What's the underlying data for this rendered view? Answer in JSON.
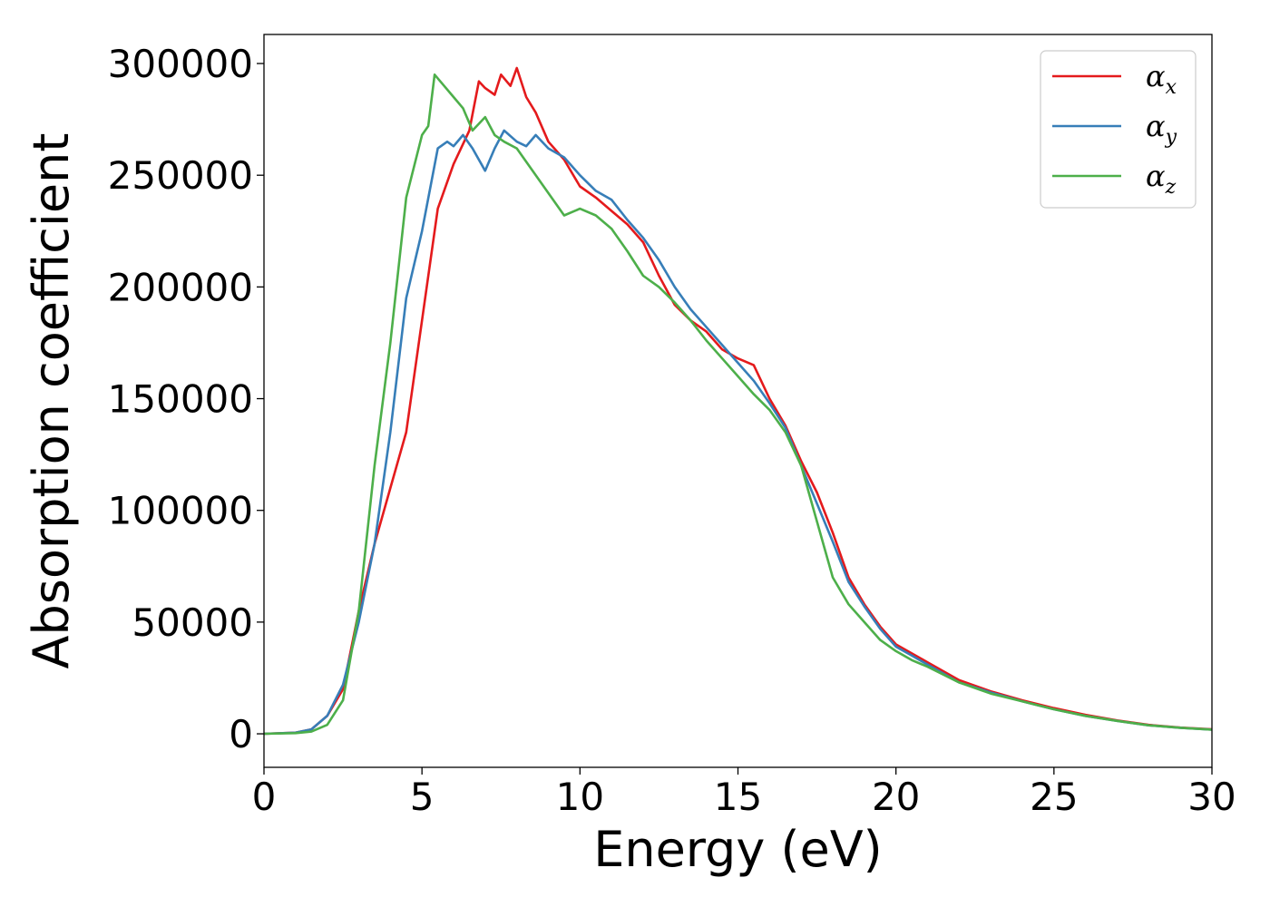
{
  "chart_data": {
    "type": "line",
    "title": "",
    "xlabel": "Energy (eV)",
    "ylabel": "Absorption coefficient",
    "xlim": [
      0,
      30
    ],
    "ylim": [
      -15000,
      313000
    ],
    "xticks": [
      0,
      5,
      10,
      15,
      20,
      25,
      30
    ],
    "xtick_labels": [
      "0",
      "5",
      "10",
      "15",
      "20",
      "25",
      "30"
    ],
    "yticks": [
      0,
      50000,
      100000,
      150000,
      200000,
      250000,
      300000
    ],
    "ytick_labels": [
      "0",
      "50000",
      "100000",
      "150000",
      "200000",
      "250000",
      "300000"
    ],
    "grid": false,
    "legend_position": "top-right",
    "series": [
      {
        "name": "α_x",
        "label_main": "α",
        "label_sub": "x",
        "color": "#e41a1c",
        "x": [
          0,
          1,
          1.5,
          2,
          2.5,
          3,
          3.5,
          4,
          4.5,
          5,
          5.5,
          6,
          6.5,
          6.8,
          7,
          7.3,
          7.5,
          7.8,
          8,
          8.3,
          8.6,
          9,
          9.5,
          10,
          10.5,
          11,
          11.5,
          12,
          12.5,
          13,
          13.5,
          14,
          14.5,
          15,
          15.5,
          16,
          16.5,
          17,
          17.5,
          18,
          18.5,
          19,
          19.5,
          20,
          20.5,
          21,
          22,
          23,
          24,
          25,
          26,
          27,
          28,
          29,
          30
        ],
        "y": [
          0,
          500,
          2000,
          8000,
          20000,
          55000,
          85000,
          110000,
          135000,
          185000,
          235000,
          255000,
          270000,
          292000,
          289000,
          286000,
          295000,
          290000,
          298000,
          285000,
          278000,
          265000,
          257000,
          245000,
          240000,
          234000,
          228000,
          220000,
          205000,
          192000,
          185000,
          180000,
          172000,
          168000,
          165000,
          150000,
          138000,
          122000,
          108000,
          90000,
          70000,
          58000,
          48000,
          40000,
          36000,
          32000,
          24000,
          19000,
          15000,
          11500,
          8500,
          6000,
          4000,
          2800,
          2000
        ]
      },
      {
        "name": "α_y",
        "label_main": "α",
        "label_sub": "y",
        "color": "#377eb8",
        "x": [
          0,
          1,
          1.5,
          2,
          2.5,
          3,
          3.5,
          4,
          4.5,
          5,
          5.5,
          5.8,
          6,
          6.3,
          6.6,
          7,
          7.3,
          7.6,
          8,
          8.3,
          8.6,
          9,
          9.5,
          10,
          10.5,
          11,
          11.5,
          12,
          12.5,
          13,
          13.5,
          14,
          14.5,
          15,
          15.5,
          16,
          16.5,
          17,
          17.5,
          18,
          18.5,
          19,
          19.5,
          20,
          20.5,
          21,
          22,
          23,
          24,
          25,
          26,
          27,
          28,
          29,
          30
        ],
        "y": [
          0,
          500,
          2000,
          8000,
          22000,
          50000,
          85000,
          135000,
          195000,
          225000,
          262000,
          265000,
          263000,
          268000,
          262000,
          252000,
          262000,
          270000,
          265000,
          263000,
          268000,
          262000,
          258000,
          250000,
          243000,
          239000,
          230000,
          222000,
          212000,
          200000,
          190000,
          182000,
          174000,
          166000,
          158000,
          148000,
          137000,
          120000,
          103000,
          86000,
          68000,
          57000,
          47000,
          39000,
          35000,
          31000,
          23000,
          18500,
          14500,
          11000,
          8000,
          5800,
          3800,
          2700,
          1900
        ]
      },
      {
        "name": "α_z",
        "label_main": "α",
        "label_sub": "z",
        "color": "#4daf4a",
        "x": [
          0,
          1,
          1.5,
          2,
          2.5,
          3,
          3.5,
          4,
          4.5,
          5,
          5.2,
          5.4,
          5.7,
          6,
          6.3,
          6.6,
          7,
          7.3,
          7.6,
          8,
          8.5,
          9,
          9.5,
          10,
          10.5,
          11,
          11.5,
          12,
          12.5,
          13,
          13.5,
          14,
          14.5,
          15,
          15.5,
          16,
          16.5,
          17,
          17.5,
          18,
          18.5,
          19,
          19.5,
          20,
          20.5,
          21,
          22,
          23,
          24,
          25,
          26,
          27,
          28,
          29,
          30
        ],
        "y": [
          0,
          300,
          1000,
          4000,
          15000,
          55000,
          120000,
          175000,
          240000,
          268000,
          272000,
          295000,
          290000,
          285000,
          280000,
          270000,
          276000,
          268000,
          265000,
          262000,
          252000,
          242000,
          232000,
          235000,
          232000,
          226000,
          216000,
          205000,
          200000,
          193000,
          185000,
          176000,
          168000,
          160000,
          152000,
          145000,
          135000,
          120000,
          95000,
          70000,
          58000,
          50000,
          42000,
          37000,
          33000,
          30000,
          23000,
          18000,
          14500,
          11000,
          8000,
          5800,
          3800,
          2700,
          1900
        ]
      }
    ]
  }
}
